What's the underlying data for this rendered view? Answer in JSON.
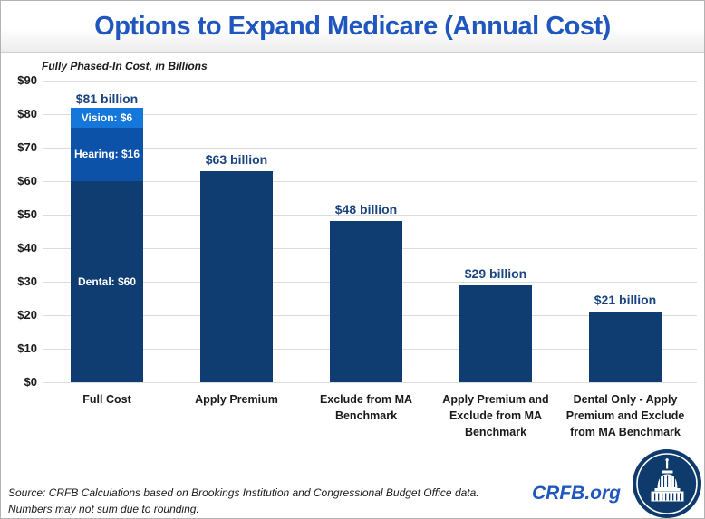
{
  "header": {
    "title": "Options to Expand Medicare (Annual Cost)"
  },
  "chart_data": {
    "type": "bar",
    "title": "Options to Expand Medicare (Annual Cost)",
    "subtitle": "Fully Phased-In Cost, in Billions",
    "categories": [
      "Full Cost",
      "Apply Premium",
      "Exclude from MA Benchmark",
      "Apply Premium and Exclude from MA Benchmark",
      "Dental Only - Apply Premium and Exclude from MA Benchmark"
    ],
    "values": [
      81,
      63,
      48,
      29,
      21
    ],
    "value_labels": [
      "$81 billion",
      "$63 billion",
      "$48 billion",
      "$29 billion",
      "$21 billion"
    ],
    "stacked_bar_index": 0,
    "segments_bottom_up": [
      {
        "name": "Dental",
        "value": 60,
        "label": "Dental: $60",
        "color": "#0F3D72"
      },
      {
        "name": "Hearing",
        "value": 16,
        "label": "Hearing: $16",
        "color": "#0C52A8"
      },
      {
        "name": "Vision",
        "value": 6,
        "label": "Vision: $6",
        "color": "#1577D9"
      }
    ],
    "ylim": [
      0,
      90
    ],
    "ytick_step": 10,
    "yticks": [
      {
        "value": 0,
        "label": "$0"
      },
      {
        "value": 10,
        "label": "$10"
      },
      {
        "value": 20,
        "label": "$20"
      },
      {
        "value": 30,
        "label": "$30"
      },
      {
        "value": 40,
        "label": "$40"
      },
      {
        "value": 50,
        "label": "$50"
      },
      {
        "value": 60,
        "label": "$60"
      },
      {
        "value": 70,
        "label": "$70"
      },
      {
        "value": 80,
        "label": "$80"
      },
      {
        "value": 90,
        "label": "$90"
      }
    ],
    "grid": true,
    "legend_position": "none"
  },
  "colors": {
    "title_blue": "#2057BE",
    "bar_navy": "#0F3D72",
    "hearing_blue": "#0C52A8",
    "vision_blue": "#1577D9",
    "value_label_navy": "#1A4480",
    "gridline": "#DCDCDC",
    "logo_navy": "#0E3A6C"
  },
  "footer": {
    "source_line1": "Source: CRFB Calculations based on Brookings Institution and Congressional Budget Office data.",
    "source_line2": "Numbers may not sum due to rounding.",
    "brand": "CRFB.org",
    "logo_icon": "capitol-building-icon"
  }
}
